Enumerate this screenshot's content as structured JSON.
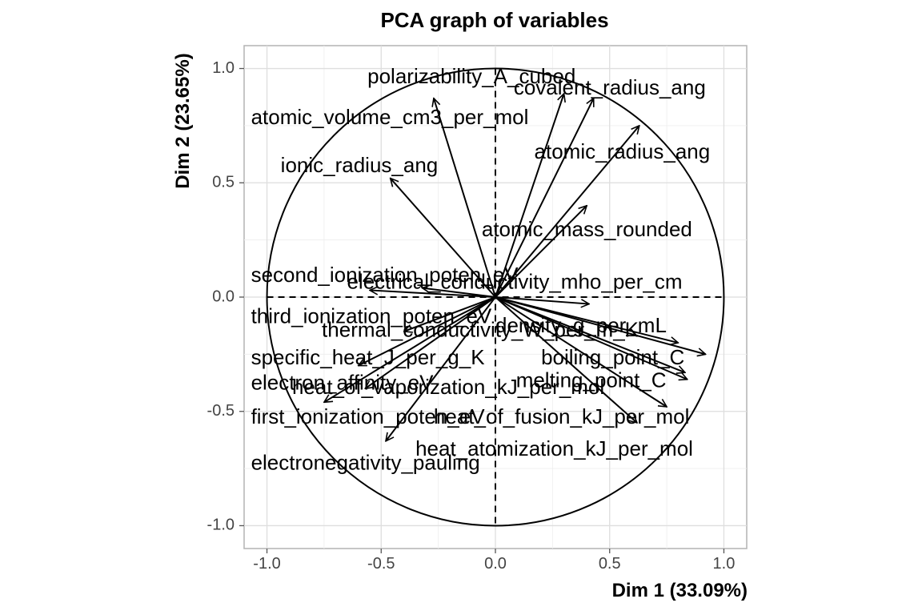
{
  "chart_data": {
    "type": "scatter",
    "subtype": "pca-variable-correlation-circle",
    "title": "PCA graph of variables",
    "xlabel": "Dim 1 (33.09%)",
    "ylabel": "Dim 2 (23.65%)",
    "xlim": [
      -1.1,
      1.1
    ],
    "ylim": [
      -1.1,
      1.1
    ],
    "x_ticks": [
      -1.0,
      -0.5,
      0.0,
      0.5,
      1.0
    ],
    "y_ticks": [
      -1.0,
      -0.5,
      0.0,
      0.5,
      1.0
    ],
    "x_tick_labels": [
      "-1.0",
      "-0.5",
      "0.0",
      "0.5",
      "1.0"
    ],
    "y_tick_labels": [
      "-1.0",
      "-0.5",
      "0.0",
      "0.5",
      "1.0"
    ],
    "grid": true,
    "unit_circle": true,
    "variables": [
      {
        "name": "polarizability_A_cubed",
        "x": -0.27,
        "y": 0.87,
        "label_x": -0.56,
        "label_y": 0.96
      },
      {
        "name": "covalent_radius_ang",
        "x": 0.3,
        "y": 0.89,
        "label_x": 0.08,
        "label_y": 0.91
      },
      {
        "name": "atomic_volume_cm3_per_mol",
        "x": 0.43,
        "y": 0.87,
        "label_x": -1.07,
        "label_y": 0.78
      },
      {
        "name": "atomic_radius_ang",
        "x": 0.63,
        "y": 0.75,
        "label_x": 0.17,
        "label_y": 0.63
      },
      {
        "name": "ionic_radius_ang",
        "x": -0.46,
        "y": 0.52,
        "label_x": -0.94,
        "label_y": 0.57
      },
      {
        "name": "atomic_mass_rounded",
        "x": 0.4,
        "y": 0.4,
        "label_x": -0.06,
        "label_y": 0.29
      },
      {
        "name": "second_ionization_poten_eV",
        "x": -0.55,
        "y": 0.03,
        "label_x": -1.07,
        "label_y": 0.09
      },
      {
        "name": "electrical_conductivity_mho_per_cm",
        "x": -0.32,
        "y": 0.04,
        "label_x": -0.65,
        "label_y": 0.06
      },
      {
        "name": "third_ionization_poten_eV",
        "x": 0.41,
        "y": -0.03,
        "label_x": -1.07,
        "label_y": -0.09
      },
      {
        "name": "thermal_conductivity_W_per_m_K",
        "x": -0.4,
        "y": -0.15,
        "label_x": -0.76,
        "label_y": -0.15
      },
      {
        "name": "density_g_per_mL",
        "x": 0.8,
        "y": -0.2,
        "label_x": 0.0,
        "label_y": -0.13
      },
      {
        "name": "specific_heat_J_per_g_K",
        "x": -0.6,
        "y": -0.3,
        "label_x": -1.07,
        "label_y": -0.27
      },
      {
        "name": "boiling_point_C",
        "x": 0.92,
        "y": -0.25,
        "label_x": 0.2,
        "label_y": -0.27
      },
      {
        "name": "melting_point_C",
        "x": 0.83,
        "y": -0.33,
        "label_x": 0.09,
        "label_y": -0.37
      },
      {
        "name": "electron_affinity_eV",
        "x": -0.57,
        "y": -0.4,
        "label_x": -1.07,
        "label_y": -0.38
      },
      {
        "name": "heat_of_vaporization_kJ_per_mol",
        "x": 0.84,
        "y": -0.36,
        "label_x": -0.89,
        "label_y": -0.4
      },
      {
        "name": "first_ionization_poten_eV",
        "x": -0.75,
        "y": -0.46,
        "label_x": -1.07,
        "label_y": -0.53
      },
      {
        "name": "heat_of_fusion_kJ_per_mol",
        "x": 0.75,
        "y": -0.48,
        "label_x": -0.27,
        "label_y": -0.53
      },
      {
        "name": "electronegativity_pauling",
        "x": -0.48,
        "y": -0.63,
        "label_x": -1.07,
        "label_y": -0.73
      },
      {
        "name": "heat_atomization_kJ_per_mol",
        "x": 0.62,
        "y": -0.55,
        "label_x": -0.35,
        "label_y": -0.67
      }
    ]
  }
}
